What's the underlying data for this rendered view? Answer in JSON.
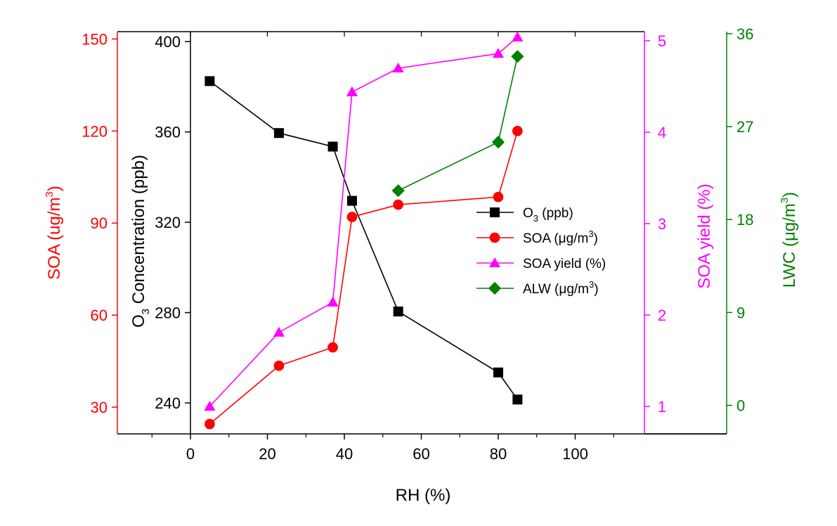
{
  "chart_data": {
    "type": "line",
    "xlabel": "RH (%)",
    "xlim": [
      -19,
      118
    ],
    "xticks": [
      0,
      20,
      40,
      60,
      80,
      100
    ],
    "axes": {
      "soa": {
        "label_main": "SOA (ug/m",
        "label_sup": "3",
        "label_end": ")",
        "color": "#FF0000",
        "ylim": [
          21.29,
          152.4
        ],
        "ticks": [
          30,
          60,
          90,
          120,
          150
        ]
      },
      "o3": {
        "label_pre": "O",
        "label_sub": "3",
        "label_main": " Concentration (ppb)",
        "color": "#000000",
        "ylim": [
          226.3,
          404.4
        ],
        "ticks": [
          240,
          280,
          320,
          360,
          400
        ]
      },
      "yield": {
        "label": "SOA yield (%)",
        "color": "#FF00FF",
        "ylim": [
          0.7,
          5.1
        ],
        "ticks": [
          1,
          2,
          3,
          4,
          5
        ]
      },
      "lwc": {
        "label_main": "LWC (μg/m",
        "label_sup": "3",
        "label_end": ")",
        "color": "#008000",
        "ylim": [
          -2.76,
          36.2
        ],
        "ticks": [
          0,
          9,
          18,
          27,
          36
        ]
      }
    },
    "series": [
      {
        "key": "o3",
        "axis": "o3",
        "marker": "square",
        "color": "#000000",
        "legend_pre": "O",
        "legend_sub": "3",
        "legend_main": " (ppb)",
        "legend_sup": "",
        "legend_end": "",
        "x": [
          5,
          23,
          37,
          42,
          54,
          80,
          85
        ],
        "y": [
          382.5,
          359.5,
          353.5,
          329.5,
          280.5,
          253.5,
          241.5
        ]
      },
      {
        "key": "soa",
        "axis": "soa",
        "marker": "circle",
        "color": "#FF0000",
        "legend_pre": "",
        "legend_sub": "",
        "legend_main": "SOA (μg/m",
        "legend_sup": "3",
        "legend_end": ")",
        "x": [
          5,
          23,
          37,
          42,
          54,
          80,
          85
        ],
        "y": [
          24.5,
          43.5,
          49.5,
          92,
          96,
          98.5,
          120
        ]
      },
      {
        "key": "yield",
        "axis": "yield",
        "marker": "triangle",
        "color": "#FF00FF",
        "legend_pre": "",
        "legend_sub": "",
        "legend_main": "SOA yield (%)",
        "legend_sup": "",
        "legend_end": "",
        "x": [
          5,
          23,
          37,
          42,
          54,
          80,
          85
        ],
        "y": [
          1.0,
          1.81,
          2.14,
          4.44,
          4.7,
          4.86,
          5.04
        ]
      },
      {
        "key": "alw",
        "axis": "lwc",
        "marker": "diamond",
        "color": "#008000",
        "legend_pre": "",
        "legend_sub": "",
        "legend_main": "ALW (μg/m",
        "legend_sup": "3",
        "legend_end": ")",
        "x": [
          54,
          80,
          85
        ],
        "y": [
          20.8,
          25.5,
          33.8
        ]
      }
    ],
    "legend_position": "center-right"
  }
}
